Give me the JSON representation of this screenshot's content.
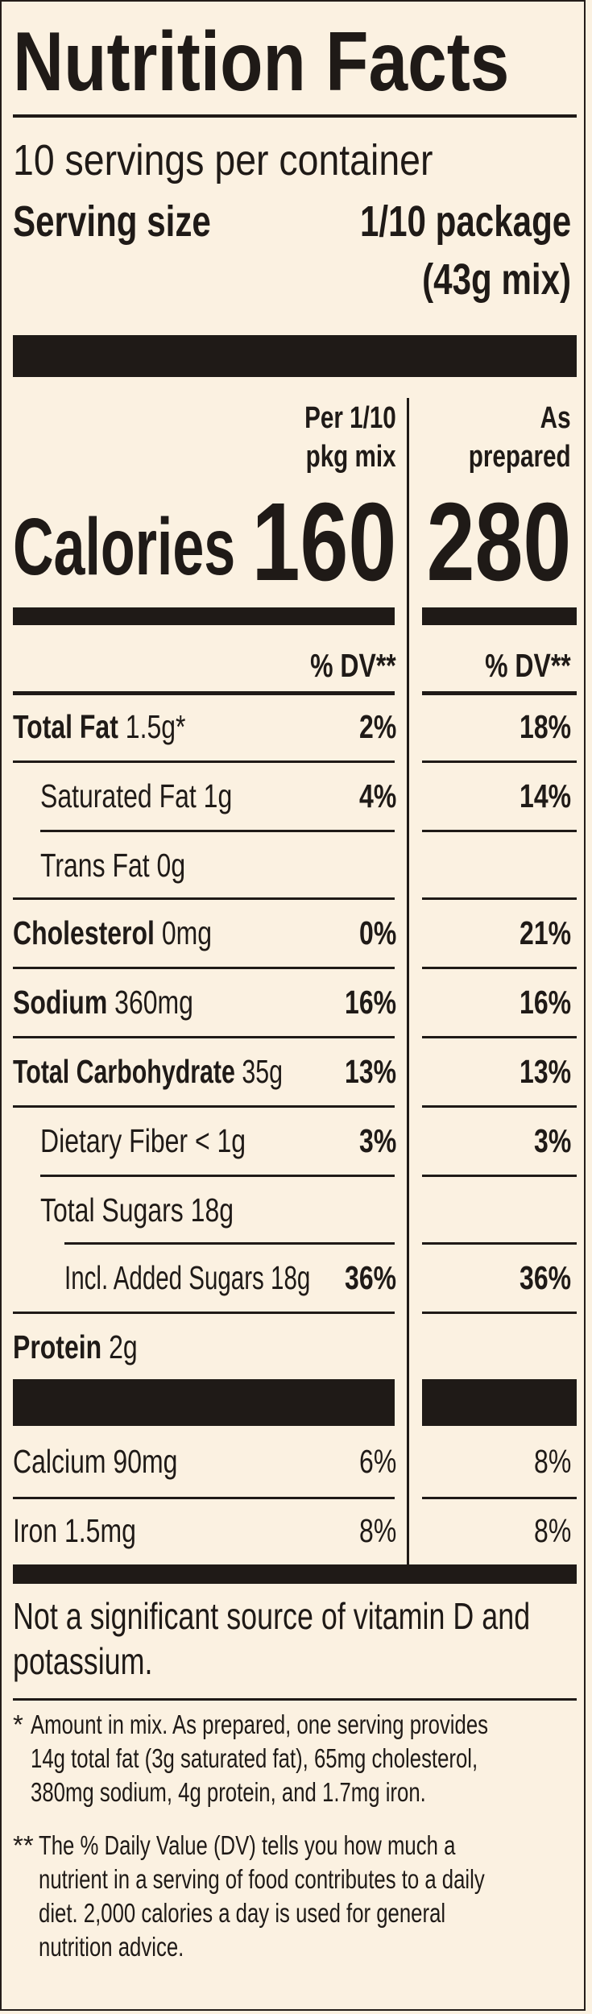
{
  "label": {
    "title": "Nutrition Facts",
    "servings": "10 servings per container",
    "serving_size_label": "Serving size",
    "serving_size_value_1": "1/10 package",
    "serving_size_value_2": "(43g mix)",
    "col1_header_1": "Per 1/10",
    "col1_header_2": "pkg mix",
    "col2_header_1": "As",
    "col2_header_2": "prepared",
    "calories_label": "Calories",
    "calories_mix": "160",
    "calories_prepared": "280",
    "dv_header_mix": "% DV**",
    "dv_header_prepared": "% DV**",
    "nutrients": [
      {
        "name": "Total Fat",
        "amount": "1.5g*",
        "dv_mix": "2%",
        "dv_prepared": "18%"
      },
      {
        "name": "Saturated Fat",
        "amount": "1g",
        "dv_mix": "4%",
        "dv_prepared": "14%"
      },
      {
        "name": "Trans Fat",
        "amount": "0g",
        "dv_mix": "",
        "dv_prepared": ""
      },
      {
        "name": "Cholesterol",
        "amount": "0mg",
        "dv_mix": "0%",
        "dv_prepared": "21%"
      },
      {
        "name": "Sodium",
        "amount": "360mg",
        "dv_mix": "16%",
        "dv_prepared": "16%"
      },
      {
        "name": "Total Carbohydrate",
        "amount": "35g",
        "dv_mix": "13%",
        "dv_prepared": "13%"
      },
      {
        "name": "Dietary Fiber",
        "amount": "< 1g",
        "dv_mix": "3%",
        "dv_prepared": "3%"
      },
      {
        "name": "Total Sugars",
        "amount": "18g",
        "dv_mix": "",
        "dv_prepared": ""
      },
      {
        "name": "Incl. Added Sugars",
        "amount": "18g",
        "dv_mix": "36%",
        "dv_prepared": "36%"
      },
      {
        "name": "Protein",
        "amount": "2g",
        "dv_mix": "",
        "dv_prepared": ""
      }
    ],
    "minerals": [
      {
        "name": "Calcium",
        "amount": "90mg",
        "dv_mix": "6%",
        "dv_prepared": "8%"
      },
      {
        "name": "Iron",
        "amount": "1.5mg",
        "dv_mix": "8%",
        "dv_prepared": "8%"
      }
    ],
    "not_significant_1": "Not a significant source of vitamin D and",
    "not_significant_2": "potassium.",
    "footnote1_mark": "*",
    "footnote1_lines": [
      "Amount in mix. As prepared, one serving provides",
      "14g total fat (3g saturated fat), 65mg cholesterol,",
      "380mg sodium, 4g protein, and 1.7mg iron."
    ],
    "footnote2_mark": "**",
    "footnote2_lines": [
      "The % Daily Value (DV) tells you how much a",
      "nutrient in a serving of food contributes to a daily",
      "diet. 2,000 calories a day is used for general",
      "nutrition advice."
    ]
  }
}
